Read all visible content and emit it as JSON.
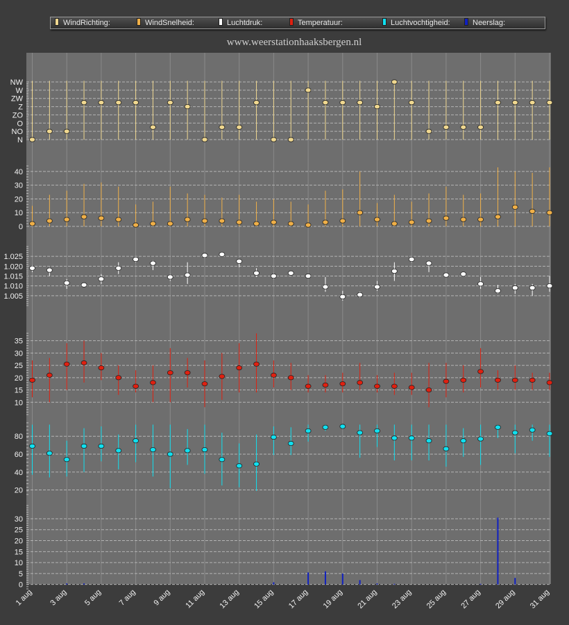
{
  "site_title": "www.weerstationhaaksbergen.nl",
  "legend": [
    {
      "label": "WindRichting:",
      "color": "#f0d890"
    },
    {
      "label": "WindSnelheid:",
      "color": "#f0b048"
    },
    {
      "label": "Luchtdruk:",
      "color": "#ffffff"
    },
    {
      "label": "Temperatuur:",
      "color": "#e02010"
    },
    {
      "label": "Luchtvochtigheid:",
      "color": "#10e0f0"
    },
    {
      "label": "Neerslag:",
      "color": "#1020c0"
    }
  ],
  "x_tick_labels": [
    "1 aug",
    "3 aug",
    "5 aug",
    "7 aug",
    "9 aug",
    "11 aug",
    "13 aug",
    "15 aug",
    "17 aug",
    "19 aug",
    "21 aug",
    "23 aug",
    "25 aug",
    "27 aug",
    "29 aug",
    "31 aug"
  ],
  "chart_data": [
    {
      "type": "scatter",
      "name": "WindRichting",
      "color": "#f0d890",
      "ytick_labels": [
        "N",
        "NO",
        "O",
        "ZO",
        "Z",
        "ZW",
        "W",
        "NW"
      ],
      "ylim": [
        0,
        7
      ],
      "days": [
        1,
        2,
        3,
        4,
        5,
        6,
        7,
        8,
        9,
        10,
        11,
        12,
        13,
        14,
        15,
        16,
        17,
        18,
        19,
        20,
        21,
        22,
        23,
        24,
        25,
        26,
        27,
        28,
        29,
        30,
        31
      ],
      "values": [
        0,
        1,
        1,
        4.5,
        4.5,
        4.5,
        4.5,
        1.5,
        4.5,
        4,
        0,
        1.5,
        1.5,
        4.5,
        0,
        0,
        6,
        4.5,
        4.5,
        4.5,
        4,
        7,
        4.5,
        1,
        1.5,
        1.5,
        1.5,
        4.5,
        4.5,
        4.5,
        4.5
      ],
      "low": [
        0,
        0,
        0,
        0,
        0,
        0,
        0,
        0,
        0,
        0,
        0,
        0,
        0,
        0,
        0,
        0,
        0,
        0,
        0,
        0,
        0,
        0,
        0,
        0,
        0,
        0,
        0,
        0,
        0,
        0,
        0
      ],
      "high": [
        8,
        8,
        8,
        8,
        8,
        8,
        8,
        8,
        8,
        8,
        8,
        8,
        8,
        8,
        8,
        8,
        8,
        8,
        8,
        8,
        8,
        8,
        8,
        8,
        8,
        8,
        8,
        8,
        8,
        8,
        8
      ]
    },
    {
      "type": "scatter",
      "name": "WindSnelheid",
      "color": "#f0b048",
      "ylim": [
        0,
        45
      ],
      "yticks": [
        0,
        10,
        20,
        30,
        40
      ],
      "days": [
        1,
        2,
        3,
        4,
        5,
        6,
        7,
        8,
        9,
        10,
        11,
        12,
        13,
        14,
        15,
        16,
        17,
        18,
        19,
        20,
        21,
        22,
        23,
        24,
        25,
        26,
        27,
        28,
        29,
        30,
        31
      ],
      "values": [
        2,
        4,
        5,
        7,
        6,
        5,
        1,
        2,
        2,
        5,
        4,
        4,
        3,
        2,
        3,
        2,
        1,
        3,
        4,
        10,
        5,
        2,
        3,
        4,
        6,
        5,
        5,
        7,
        14,
        11,
        10
      ],
      "low": [
        0,
        0,
        0,
        0,
        0,
        0,
        0,
        0,
        0,
        0,
        0,
        0,
        0,
        0,
        0,
        0,
        0,
        0,
        0,
        0,
        0,
        0,
        0,
        0,
        0,
        0,
        0,
        0,
        0,
        0,
        0
      ],
      "high": [
        15,
        23,
        26,
        31,
        32,
        29,
        16,
        18,
        29,
        24,
        23,
        21,
        23,
        18,
        20,
        18,
        16,
        26,
        27,
        40,
        17,
        23,
        18,
        24,
        29,
        23,
        24,
        43,
        40,
        39,
        43
      ]
    },
    {
      "type": "scatter",
      "name": "Luchtdruk",
      "color": "#ffffff",
      "ylim": [
        1.0,
        1.03
      ],
      "yticks": [
        1.005,
        1.01,
        1.015,
        1.02,
        1.025
      ],
      "ytick_labels": [
        "1.005",
        "1.010",
        "1.015",
        "1.020",
        "1.025"
      ],
      "days": [
        1,
        2,
        3,
        4,
        5,
        6,
        7,
        8,
        9,
        10,
        11,
        12,
        13,
        14,
        15,
        16,
        17,
        18,
        19,
        20,
        21,
        22,
        23,
        24,
        25,
        26,
        27,
        28,
        29,
        30,
        31
      ],
      "values": [
        1.019,
        1.018,
        1.0115,
        1.0105,
        1.0135,
        1.019,
        1.0235,
        1.0215,
        1.0145,
        1.0155,
        1.0255,
        1.026,
        1.0225,
        1.0165,
        1.015,
        1.0165,
        1.015,
        1.0095,
        1.0045,
        1.0055,
        1.0095,
        1.0175,
        1.0235,
        1.0215,
        1.0155,
        1.016,
        1.011,
        1.0075,
        1.009,
        1.009,
        1.01
      ],
      "low": [
        1.017,
        1.015,
        1.0085,
        1.0095,
        1.011,
        1.016,
        1.022,
        1.018,
        1.0125,
        1.011,
        1.024,
        1.025,
        1.0195,
        1.0145,
        1.0135,
        1.0155,
        1.0145,
        1.007,
        1.0025,
        1.004,
        1.0075,
        1.0125,
        1.022,
        1.017,
        1.015,
        1.015,
        1.0085,
        1.006,
        1.006,
        1.005,
        1.007
      ],
      "high": [
        1.0205,
        1.0195,
        1.0135,
        1.011,
        1.016,
        1.022,
        1.024,
        1.023,
        1.016,
        1.022,
        1.026,
        1.027,
        1.0235,
        1.019,
        1.0165,
        1.017,
        1.0155,
        1.0145,
        1.0075,
        1.007,
        1.0125,
        1.022,
        1.024,
        1.0225,
        1.016,
        1.017,
        1.0145,
        1.0105,
        1.011,
        1.011,
        1.015
      ]
    },
    {
      "type": "scatter",
      "name": "Temperatuur",
      "color": "#e02010",
      "ylim": [
        5,
        38
      ],
      "yticks": [
        10,
        15,
        20,
        25,
        30,
        35
      ],
      "days": [
        1,
        2,
        3,
        4,
        5,
        6,
        7,
        8,
        9,
        10,
        11,
        12,
        13,
        14,
        15,
        16,
        17,
        18,
        19,
        20,
        21,
        22,
        23,
        24,
        25,
        26,
        27,
        28,
        29,
        30,
        31
      ],
      "values": [
        19,
        21,
        25.5,
        26,
        24,
        20,
        16.5,
        18,
        22,
        22,
        17.5,
        20.5,
        24,
        25.5,
        21,
        20,
        16.5,
        17,
        17.5,
        18,
        16.5,
        16.5,
        16,
        15,
        18.5,
        19,
        22.5,
        19,
        19,
        19,
        18
      ],
      "low": [
        12,
        10,
        15,
        18,
        19,
        13,
        14,
        10,
        10,
        16,
        8,
        11,
        14,
        14,
        16,
        15,
        14,
        14,
        14,
        15,
        14,
        13,
        13,
        8,
        12,
        14,
        16,
        15,
        15,
        15,
        15
      ],
      "high": [
        27,
        28,
        34,
        35,
        30,
        25,
        23,
        25,
        32,
        28,
        27,
        30,
        34,
        38,
        27,
        26,
        21,
        21,
        22,
        26,
        21,
        22,
        22,
        26,
        26,
        25,
        32,
        23,
        25,
        22,
        22
      ]
    },
    {
      "type": "scatter",
      "name": "Luchtvochtigheid",
      "color": "#10e0f0",
      "ylim": [
        15,
        98
      ],
      "yticks": [
        20,
        40,
        60,
        80
      ],
      "days": [
        1,
        2,
        3,
        4,
        5,
        6,
        7,
        8,
        9,
        10,
        11,
        12,
        13,
        14,
        15,
        16,
        17,
        18,
        19,
        20,
        21,
        22,
        23,
        24,
        25,
        26,
        27,
        28,
        29,
        30,
        31
      ],
      "values": [
        69,
        61,
        54,
        69,
        69,
        64,
        75,
        65,
        60,
        64,
        65,
        54,
        47,
        49,
        79,
        72,
        86,
        90,
        91,
        84,
        86,
        78,
        78,
        75,
        66,
        75,
        77,
        90,
        84,
        87,
        83
      ],
      "low": [
        37,
        34,
        35,
        40,
        52,
        43,
        51,
        35,
        22,
        48,
        38,
        25,
        23,
        19,
        59,
        59,
        74,
        86,
        88,
        56,
        68,
        53,
        53,
        53,
        46,
        57,
        48,
        78,
        61,
        75,
        57
      ],
      "high": [
        93,
        93,
        75,
        89,
        91,
        82,
        93,
        93,
        93,
        88,
        93,
        84,
        72,
        82,
        91,
        90,
        93,
        93,
        93,
        93,
        93,
        93,
        93,
        93,
        93,
        89,
        93,
        93,
        93,
        93,
        93
      ]
    },
    {
      "type": "bar",
      "name": "Neerslag",
      "color": "#1020c0",
      "ylim": [
        -2,
        36
      ],
      "yticks": [
        0,
        5,
        10,
        15,
        20,
        25,
        30
      ],
      "days": [
        1,
        2,
        3,
        4,
        5,
        6,
        7,
        8,
        9,
        10,
        11,
        12,
        13,
        14,
        15,
        16,
        17,
        18,
        19,
        20,
        21,
        22,
        23,
        24,
        25,
        26,
        27,
        28,
        29,
        30,
        31
      ],
      "values": [
        0,
        0,
        0.5,
        0.5,
        0,
        0,
        0,
        0,
        0,
        0,
        0,
        0,
        0,
        0,
        1,
        0,
        5.5,
        6,
        5,
        2,
        0.5,
        0.3,
        0,
        0,
        0,
        0,
        0.3,
        30.5,
        3,
        0,
        0
      ]
    }
  ]
}
